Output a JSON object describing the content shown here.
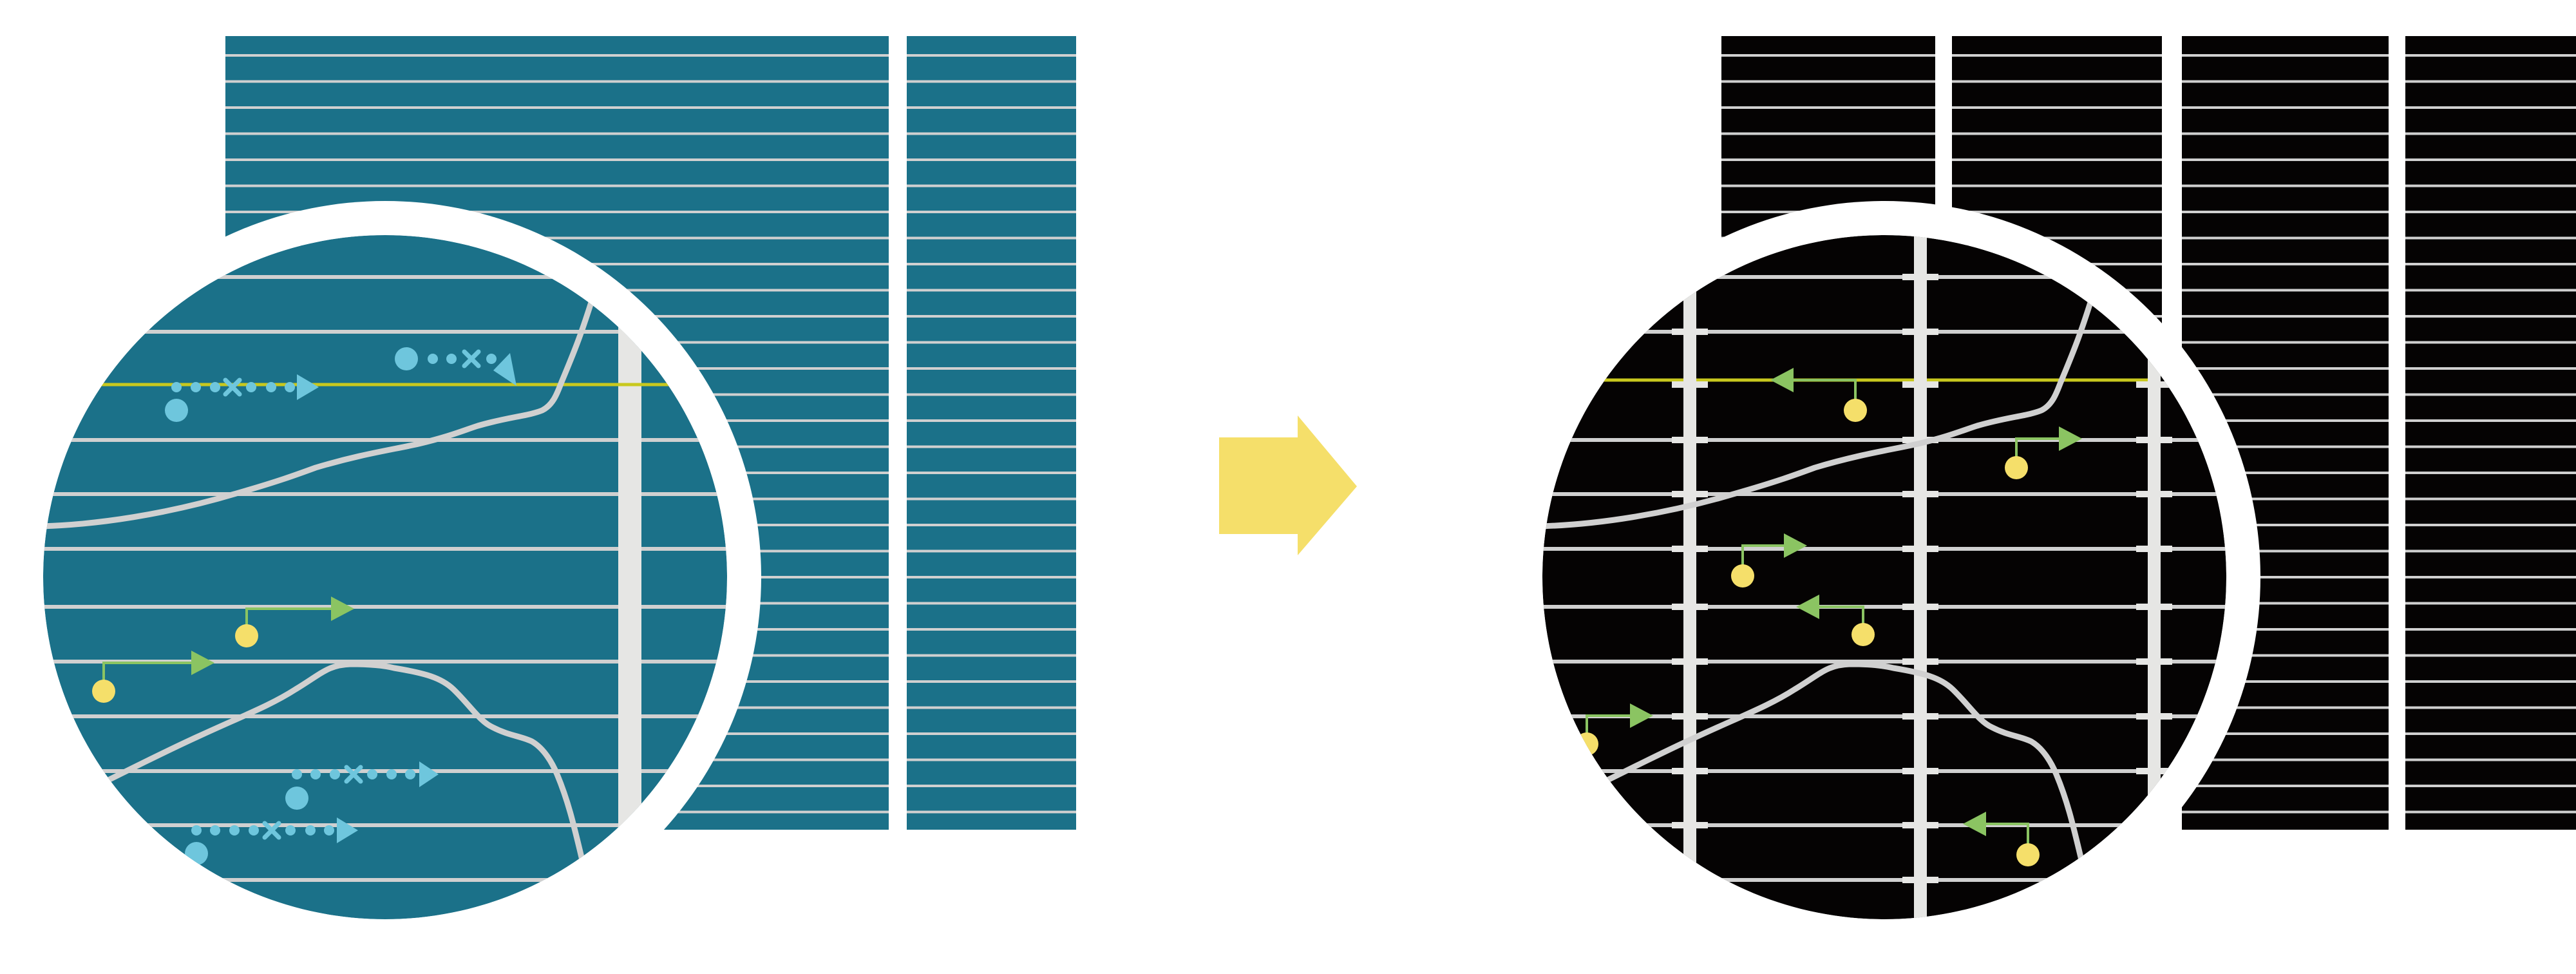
{
  "colors": {
    "before_background": "#1B7189",
    "after_background": "#050303",
    "grid_line": "#D0D0D0",
    "column_bar": "#E6E6E4",
    "highlight_line": "#C8C81E",
    "scattered_marker": "#6EC6DD",
    "anchor_dot": "#F5DF6A",
    "direction_arrow": "#8BC462",
    "transition_arrow": "#F5DF6A",
    "lens_ring": "#FFFFFF"
  },
  "icons": {
    "transition": "arrow-right-icon",
    "magnifier": "magnifier-lens-icon"
  },
  "before": {
    "panel_columns": 2,
    "lens_column_bars": 1
  },
  "after": {
    "panel_columns": 4,
    "lens_column_bars": 3
  }
}
